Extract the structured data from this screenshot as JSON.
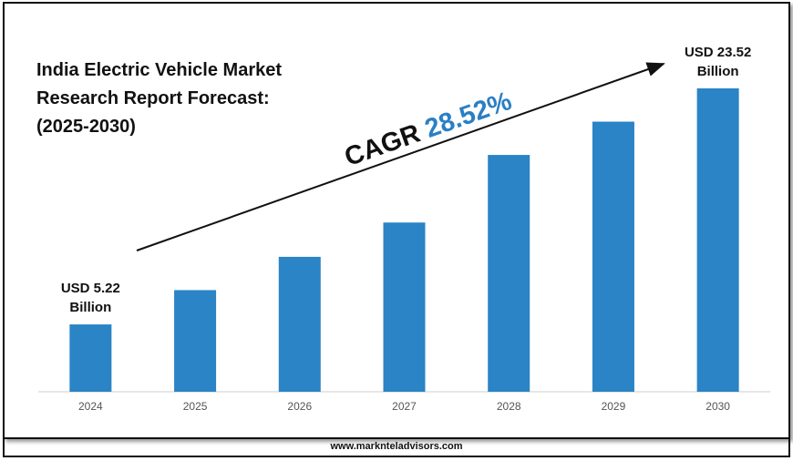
{
  "chart_data": {
    "type": "bar",
    "title": "India Electric Vehicle Market\nResearch Report Forecast:\n(2025-2030)",
    "categories": [
      "2024",
      "2025",
      "2026",
      "2027",
      "2028",
      "2029",
      "2030"
    ],
    "values": [
      5.22,
      7.88,
      10.46,
      13.12,
      18.36,
      20.94,
      23.52
    ],
    "value_labels": [
      "USD 5.22\nBillion",
      null,
      null,
      null,
      null,
      null,
      "USD 23.52\nBillion"
    ],
    "color": "#2a84c6",
    "annotation_label": "CAGR",
    "annotation_value": "28.52%"
  },
  "footer": "www.marknteladvisors.com"
}
